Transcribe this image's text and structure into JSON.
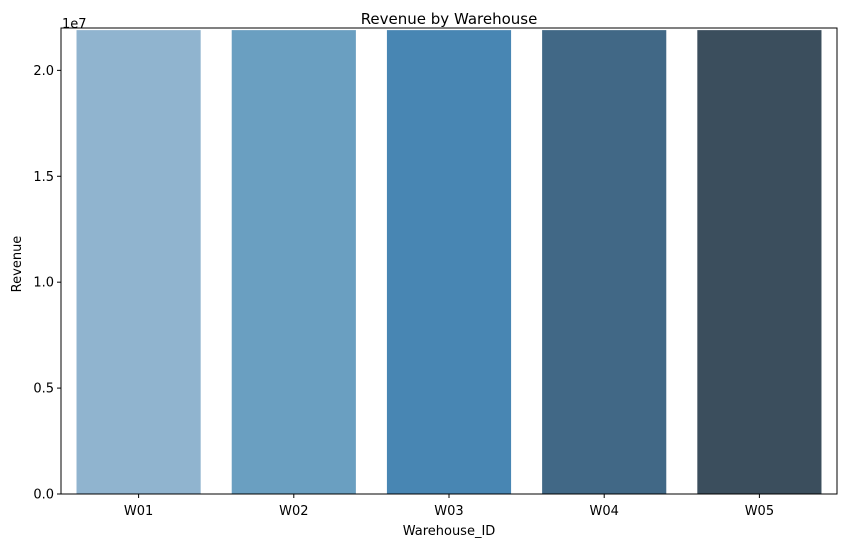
{
  "chart_data": {
    "type": "bar",
    "title": "Revenue by Warehouse",
    "xlabel": "Warehouse_ID",
    "ylabel": "Revenue",
    "scale_label": "1e7",
    "categories": [
      "W01",
      "W02",
      "W03",
      "W04",
      "W05"
    ],
    "values": [
      21900000,
      21900000,
      21900000,
      21900000,
      21900000
    ],
    "ylim": [
      0,
      22000000
    ],
    "y_ticks": [
      0,
      5000000,
      10000000,
      15000000,
      20000000
    ],
    "y_tick_labels": [
      "0.0",
      "0.5",
      "1.0",
      "1.5",
      "2.0"
    ],
    "colors": [
      "#90b4cf",
      "#6a9fc1",
      "#4886b3",
      "#416886",
      "#3b4e5d"
    ],
    "grid": false,
    "legend": "none"
  }
}
